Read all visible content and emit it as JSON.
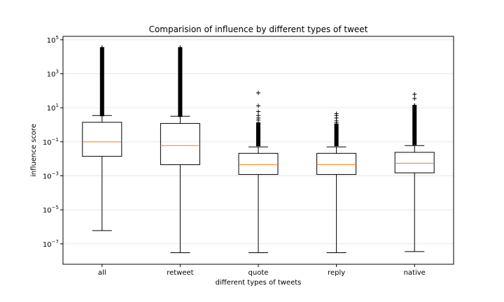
{
  "chart_data": {
    "type": "box",
    "title": "Comparision of influence by different types of tweet",
    "xlabel": "different types of tweets",
    "ylabel": "influence score",
    "yscale": "log",
    "ylim_exponent": [
      -8.2,
      5.2
    ],
    "ytick_exponents": [
      -7,
      -5,
      -3,
      -1,
      1,
      3,
      5
    ],
    "grid": "y",
    "categories": [
      "all",
      "retweet",
      "quote",
      "reply",
      "native"
    ],
    "boxes": [
      {
        "name": "all",
        "whisker_low": 6e-07,
        "q1": 0.014,
        "median": 0.1,
        "q3": 1.4,
        "whisker_high": 3.5,
        "outliers_dense": [
          3.5,
          32000
        ],
        "outliers": []
      },
      {
        "name": "retweet",
        "whisker_low": 3e-08,
        "q1": 0.0045,
        "median": 0.06,
        "q3": 1.2,
        "whisker_high": 3.2,
        "outliers_dense": [
          3.2,
          32000
        ],
        "outliers": []
      },
      {
        "name": "quote",
        "whisker_low": 3e-08,
        "q1": 0.0012,
        "median": 0.0045,
        "q3": 0.021,
        "whisker_high": 0.05,
        "outliers_dense": [
          0.06,
          1.2
        ],
        "outliers": [
          1.9,
          2.5,
          3.5,
          6,
          13,
          75
        ]
      },
      {
        "name": "reply",
        "whisker_low": 3e-08,
        "q1": 0.0012,
        "median": 0.0045,
        "q3": 0.021,
        "whisker_high": 0.05,
        "outliers_dense": [
          0.06,
          1.0
        ],
        "outliers": [
          1.3,
          1.7,
          2.5,
          3.5,
          4.5
        ]
      },
      {
        "name": "native",
        "whisker_low": 3.5e-08,
        "q1": 0.0015,
        "median": 0.0055,
        "q3": 0.024,
        "whisker_high": 0.06,
        "outliers_dense": [
          0.07,
          12
        ],
        "outliers": [
          14,
          35,
          62
        ]
      }
    ],
    "colors": {
      "box": "#000000",
      "median": "#ff7f0e",
      "grid": "#e6e6e6"
    }
  }
}
